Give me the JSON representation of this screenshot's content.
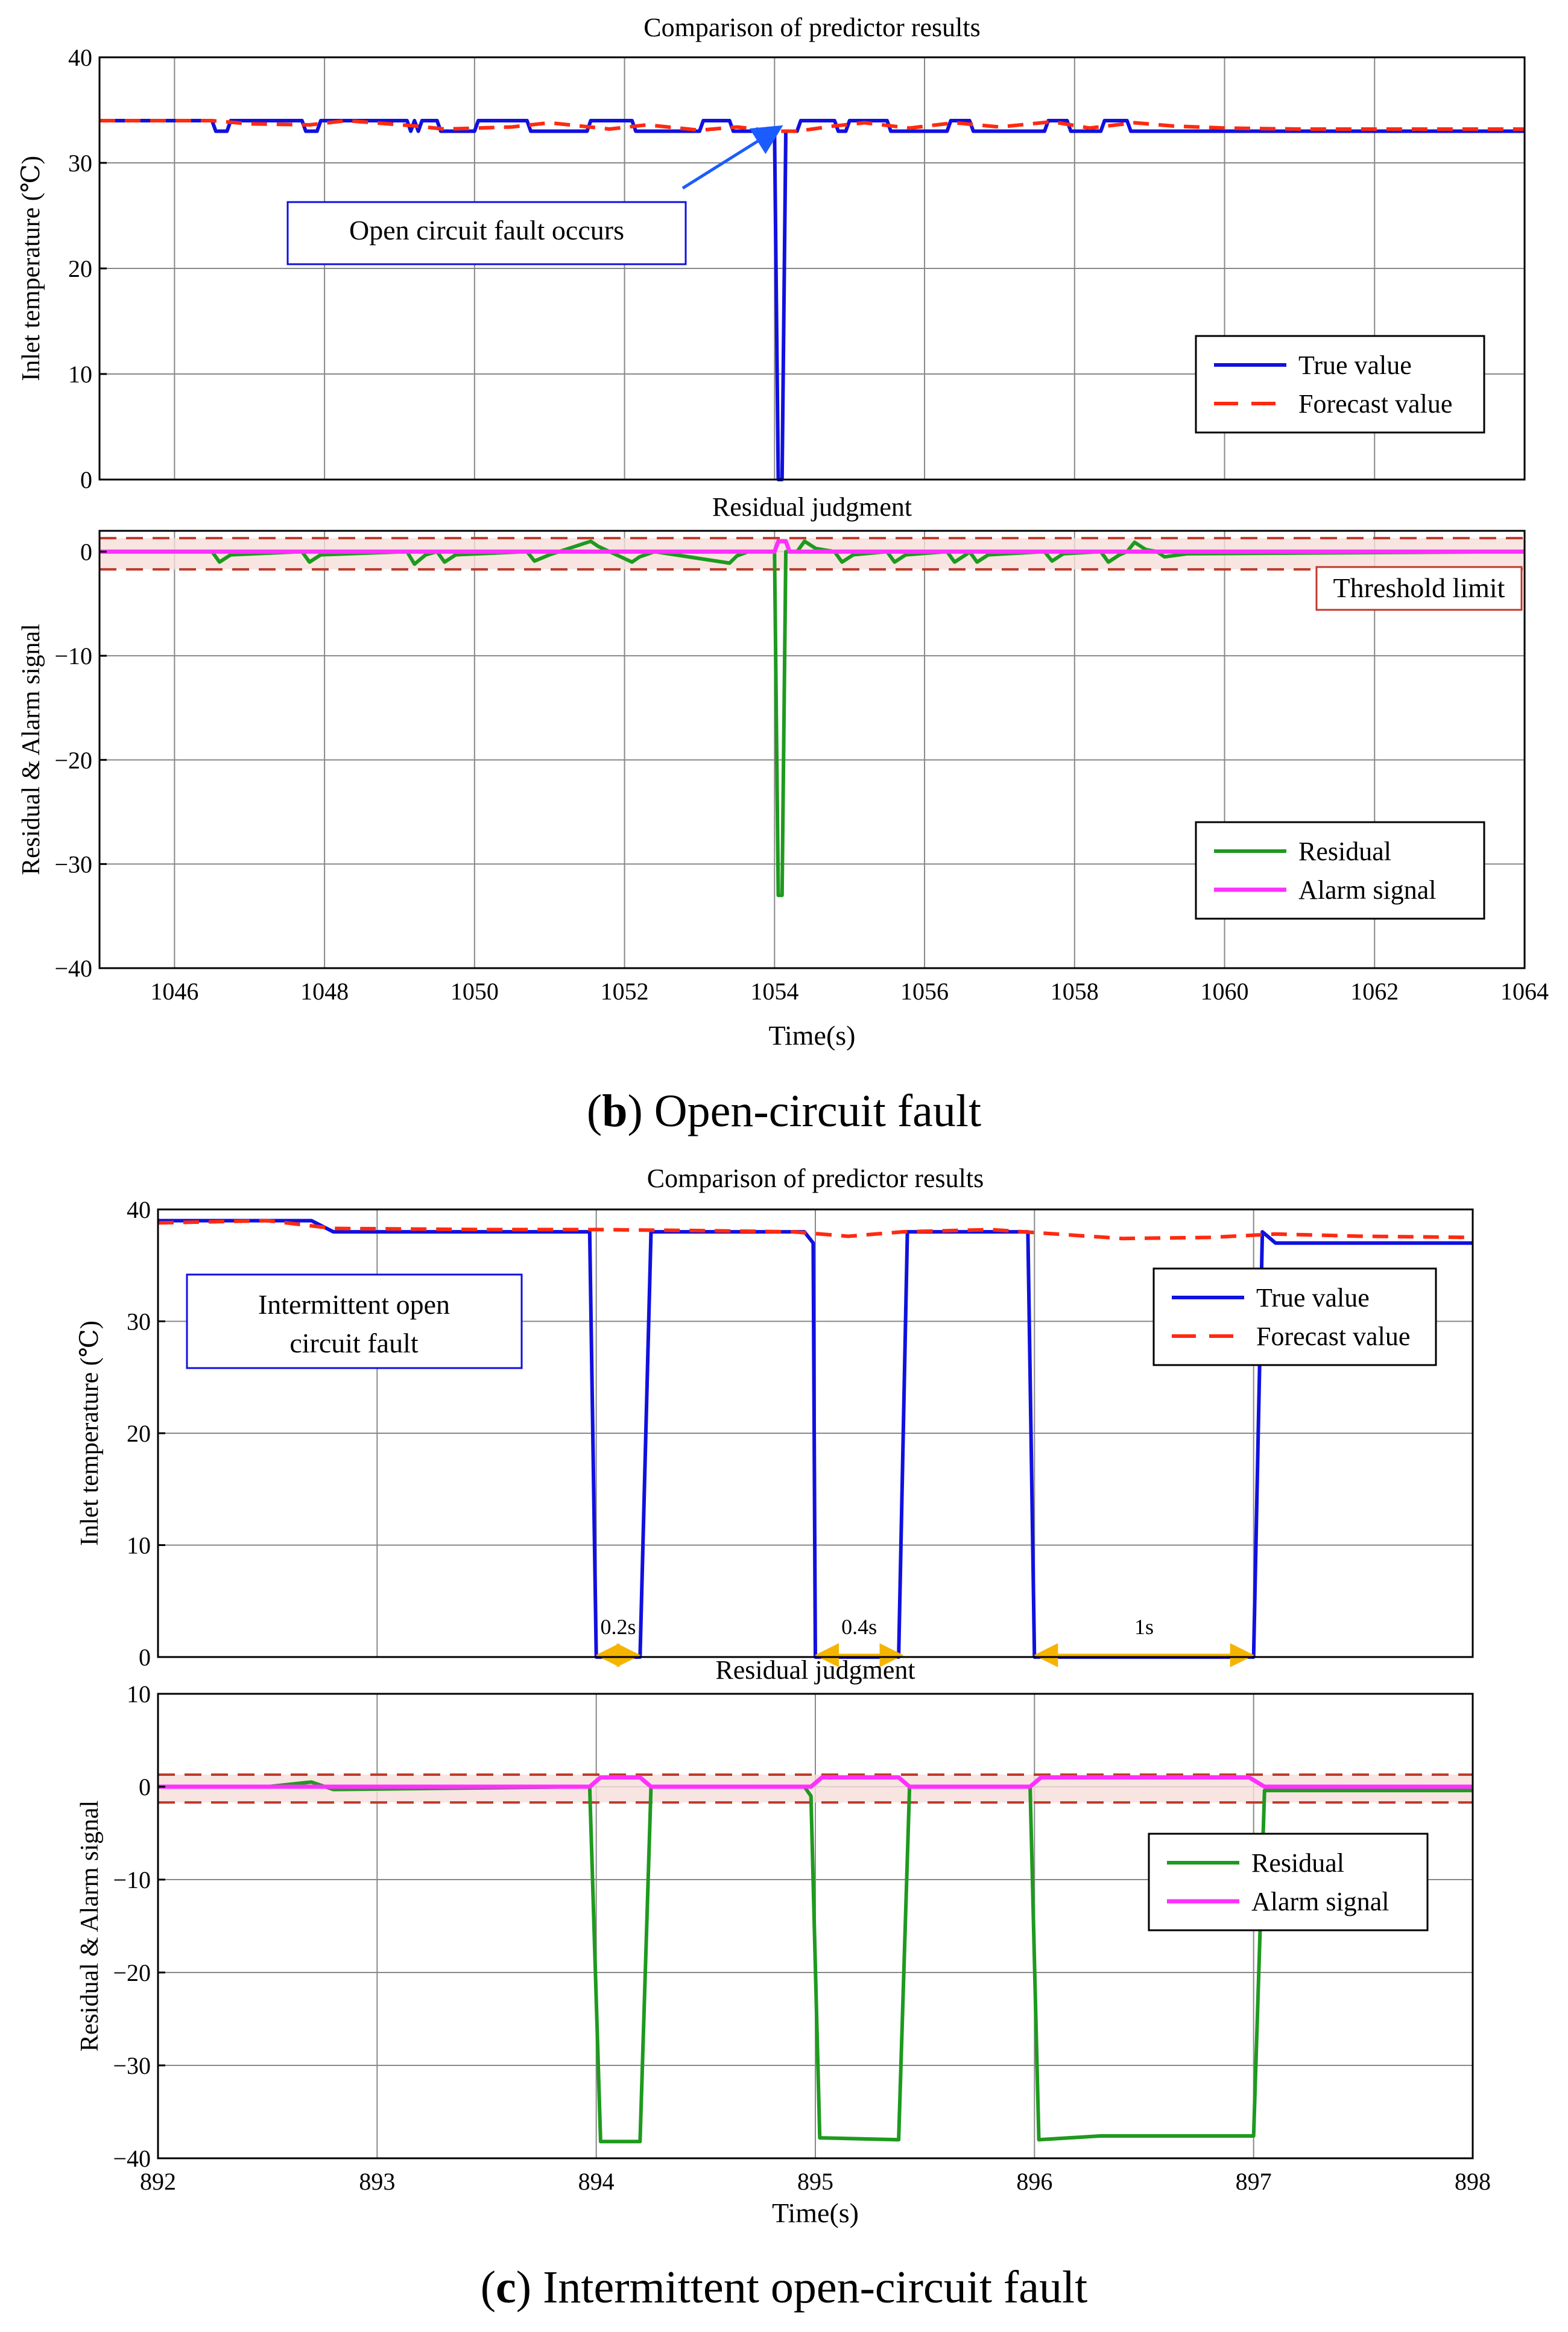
{
  "captions": {
    "b_letter": "b",
    "b_text": "Open-circuit fault",
    "c_letter": "c",
    "c_text": "Intermittent open-circuit fault"
  },
  "annotations": {
    "b_fault": "Open circuit fault occurs",
    "b_threshold": "Threshold limit",
    "c_fault_line1": "Intermittent open",
    "c_fault_line2": "circuit fault",
    "c_dur1": "0.2s",
    "c_dur2": "0.4s",
    "c_dur3": "1s"
  },
  "colors": {
    "true": "#1010e0",
    "forecast": "#ff2a10",
    "residual": "#1e9a1e",
    "alarm": "#ff30ff",
    "threshold": "#c0392b",
    "band": "#f6dfdb",
    "arrow": "#1a5cff",
    "duration": "#f5b400"
  },
  "chart_data": [
    {
      "id": "b1",
      "type": "line",
      "title": "Comparison of predictor results",
      "xlabel": "",
      "ylabel": "Inlet temperature (℃)",
      "xlim": [
        1045,
        1064
      ],
      "ylim": [
        0,
        40
      ],
      "xticks": [
        1046,
        1048,
        1050,
        1052,
        1054,
        1056,
        1058,
        1060,
        1062,
        1064
      ],
      "yticks": [
        0,
        10,
        20,
        30,
        40
      ],
      "ytick_labels": [
        "0",
        "10",
        "20",
        "30",
        "40"
      ],
      "legend": [
        "True value",
        "Forecast value"
      ],
      "series": [
        {
          "name": "True value",
          "x": [
            1045,
            1046.5,
            1046.55,
            1046.7,
            1046.75,
            1047.7,
            1047.75,
            1047.9,
            1047.95,
            1048.1,
            1048.15,
            1049.1,
            1049.15,
            1049.2,
            1049.25,
            1049.3,
            1049.35,
            1049.5,
            1049.55,
            1050.0,
            1050.05,
            1050.7,
            1050.75,
            1051.5,
            1051.55,
            1052.1,
            1052.15,
            1053.0,
            1053.05,
            1053.4,
            1053.45,
            1054.0,
            1054.05,
            1054.1,
            1054.15,
            1054.3,
            1054.35,
            1054.8,
            1054.85,
            1054.95,
            1055.0,
            1055.5,
            1055.55,
            1056.3,
            1056.35,
            1056.6,
            1056.65,
            1057.6,
            1057.65,
            1057.9,
            1057.95,
            1058.35,
            1058.4,
            1058.7,
            1058.75,
            1059.1,
            1059.15,
            1064
          ],
          "y": [
            34,
            34,
            33,
            33,
            34,
            34,
            33,
            33,
            34,
            34,
            34,
            34,
            33,
            34,
            33,
            34,
            34,
            34,
            33,
            33,
            34,
            34,
            33,
            33,
            34,
            34,
            33,
            33,
            34,
            34,
            33,
            33,
            0,
            0,
            33,
            33,
            34,
            34,
            33,
            33,
            34,
            34,
            33,
            33,
            34,
            34,
            33,
            33,
            34,
            34,
            33,
            33,
            34,
            34,
            33,
            33,
            33,
            33
          ]
        },
        {
          "name": "Forecast value",
          "x": [
            1045,
            1046.5,
            1047.0,
            1047.8,
            1048.3,
            1049.2,
            1049.6,
            1050.5,
            1051.0,
            1051.8,
            1052.3,
            1053.0,
            1053.5,
            1054.0,
            1054.3,
            1054.8,
            1055.2,
            1055.8,
            1056.4,
            1057.0,
            1057.7,
            1058.2,
            1058.8,
            1059.3,
            1060.0,
            1061.0,
            1062.0,
            1064
          ],
          "y": [
            34,
            34,
            33.7,
            33.6,
            34,
            33.5,
            33.2,
            33.4,
            33.8,
            33.2,
            33.6,
            33.1,
            33.4,
            33.0,
            33.0,
            33.5,
            33.8,
            33.3,
            33.8,
            33.4,
            33.9,
            33.3,
            33.8,
            33.5,
            33.3,
            33.2,
            33.2,
            33.2
          ]
        }
      ]
    },
    {
      "id": "b2",
      "type": "line",
      "title": "Residual judgment",
      "xlabel": "Time(s)",
      "ylabel": "Residual & Alarm signal",
      "xlim": [
        1045,
        1064
      ],
      "ylim": [
        -40,
        2
      ],
      "xticks": [
        1046,
        1048,
        1050,
        1052,
        1054,
        1056,
        1058,
        1060,
        1062,
        1064
      ],
      "xtick_labels": [
        "1046",
        "1048",
        "1050",
        "1052",
        "1054",
        "1056",
        "1058",
        "1060",
        "1062",
        "1064"
      ],
      "yticks": [
        0,
        -10,
        -20,
        -30,
        -40
      ],
      "ytick_labels": [
        "0",
        "−10",
        "−20",
        "−30",
        "−40"
      ],
      "threshold": [
        1.3,
        -1.7
      ],
      "legend": [
        "Residual",
        "Alarm signal"
      ],
      "series": [
        {
          "name": "Residual",
          "x": [
            1045,
            1046.5,
            1046.6,
            1046.75,
            1047.7,
            1047.8,
            1047.95,
            1049.1,
            1049.2,
            1049.35,
            1049.5,
            1049.6,
            1049.75,
            1050.7,
            1050.8,
            1051.0,
            1051.55,
            1051.65,
            1051.8,
            1052.1,
            1052.2,
            1052.4,
            1053.4,
            1053.5,
            1053.65,
            1054.0,
            1054.05,
            1054.1,
            1054.15,
            1054.3,
            1054.4,
            1054.55,
            1054.8,
            1054.9,
            1055.05,
            1055.5,
            1055.6,
            1055.75,
            1056.3,
            1056.4,
            1056.55,
            1056.6,
            1056.7,
            1056.85,
            1057.6,
            1057.7,
            1057.85,
            1058.35,
            1058.45,
            1058.6,
            1058.7,
            1058.8,
            1058.95,
            1059.1,
            1059.2,
            1059.5,
            1064
          ],
          "y": [
            0,
            0,
            -1,
            -0.3,
            0,
            -1,
            -0.3,
            0,
            -1.2,
            -0.3,
            0,
            -1,
            -0.3,
            0,
            -0.9,
            -0.3,
            1,
            0.5,
            0,
            -1,
            -0.5,
            0,
            -1.1,
            -0.4,
            0,
            0,
            -33,
            -33,
            0,
            0,
            1,
            0.3,
            0,
            -1,
            -0.3,
            0,
            -1,
            -0.3,
            0,
            -1,
            -0.3,
            0,
            -1,
            -0.3,
            0,
            -0.9,
            -0.2,
            0,
            -1,
            -0.3,
            0,
            0.9,
            0.2,
            0,
            -0.5,
            -0.2,
            0
          ]
        },
        {
          "name": "Alarm signal",
          "x": [
            1045,
            1054.0,
            1054.05,
            1054.15,
            1054.2,
            1064
          ],
          "y": [
            0,
            0,
            1,
            1,
            0,
            0
          ]
        }
      ]
    },
    {
      "id": "c1",
      "type": "line",
      "title": "Comparison of predictor results",
      "xlabel": "",
      "ylabel": "Inlet temperature (℃)",
      "xlim": [
        892,
        898
      ],
      "ylim": [
        0,
        40
      ],
      "xticks": [
        893,
        894,
        895,
        896,
        897
      ],
      "yticks": [
        0,
        10,
        20,
        30,
        40
      ],
      "ytick_labels": [
        "0",
        "10",
        "20",
        "30",
        "40"
      ],
      "legend": [
        "True value",
        "Forecast value"
      ],
      "series": [
        {
          "name": "True value",
          "x": [
            892,
            892.7,
            892.8,
            893.97,
            894.0,
            894.2,
            894.25,
            894.95,
            894.99,
            895.0,
            895.38,
            895.42,
            895.97,
            896.0,
            897.0,
            897.04,
            897.1,
            898
          ],
          "y": [
            39,
            39,
            38,
            38,
            0,
            0,
            38,
            38,
            37,
            0,
            0,
            38,
            38,
            0,
            0,
            38,
            37,
            37
          ]
        },
        {
          "name": "Forecast value",
          "x": [
            892,
            892.5,
            892.8,
            893.5,
            894.0,
            894.5,
            894.9,
            895.15,
            895.4,
            895.8,
            896.1,
            896.4,
            896.8,
            897.1,
            897.5,
            898
          ],
          "y": [
            38.8,
            39,
            38.3,
            38.2,
            38.2,
            38.1,
            38,
            37.6,
            38,
            38.2,
            37.8,
            37.4,
            37.5,
            37.8,
            37.6,
            37.5
          ]
        }
      ],
      "durations": [
        {
          "from": 894.0,
          "to": 894.2,
          "label": "0.2s"
        },
        {
          "from": 895.0,
          "to": 895.4,
          "label": "0.4s"
        },
        {
          "from": 896.0,
          "to": 897.0,
          "label": "1s"
        }
      ]
    },
    {
      "id": "c2",
      "type": "line",
      "title": "Residual judgment",
      "xlabel": "Time(s)",
      "ylabel": "Residual & Alarm signal",
      "xlim": [
        892,
        898
      ],
      "ylim": [
        -40,
        10
      ],
      "xticks": [
        892,
        893,
        894,
        895,
        896,
        897,
        898
      ],
      "xtick_labels": [
        "892",
        "893",
        "894",
        "895",
        "896",
        "897",
        "898"
      ],
      "yticks": [
        10,
        0,
        -10,
        -20,
        -30,
        -40
      ],
      "ytick_labels": [
        "10",
        "0",
        "−10",
        "−20",
        "−30",
        "−40"
      ],
      "threshold": [
        1.3,
        -1.7
      ],
      "legend": [
        "Residual",
        "Alarm signal"
      ],
      "series": [
        {
          "name": "Residual",
          "x": [
            892,
            892.5,
            892.7,
            892.8,
            893.97,
            894.02,
            894.2,
            894.25,
            894.95,
            894.98,
            895.02,
            895.38,
            895.43,
            895.98,
            896.02,
            896.3,
            896.5,
            897.0,
            897.05,
            898
          ],
          "y": [
            0,
            0,
            0.5,
            -0.3,
            0,
            -38.2,
            -38.2,
            0,
            0,
            -1,
            -37.8,
            -38,
            0,
            0,
            -38,
            -37.6,
            -37.6,
            -37.6,
            -0.4,
            -0.4
          ]
        },
        {
          "name": "Alarm signal",
          "x": [
            892,
            893.97,
            894.02,
            894.2,
            894.25,
            894.98,
            895.03,
            895.38,
            895.43,
            895.98,
            896.03,
            896.98,
            897.05,
            898
          ],
          "y": [
            0,
            0,
            1,
            1,
            0,
            0,
            1,
            1,
            0,
            0,
            1,
            1,
            0,
            0
          ]
        }
      ]
    }
  ]
}
